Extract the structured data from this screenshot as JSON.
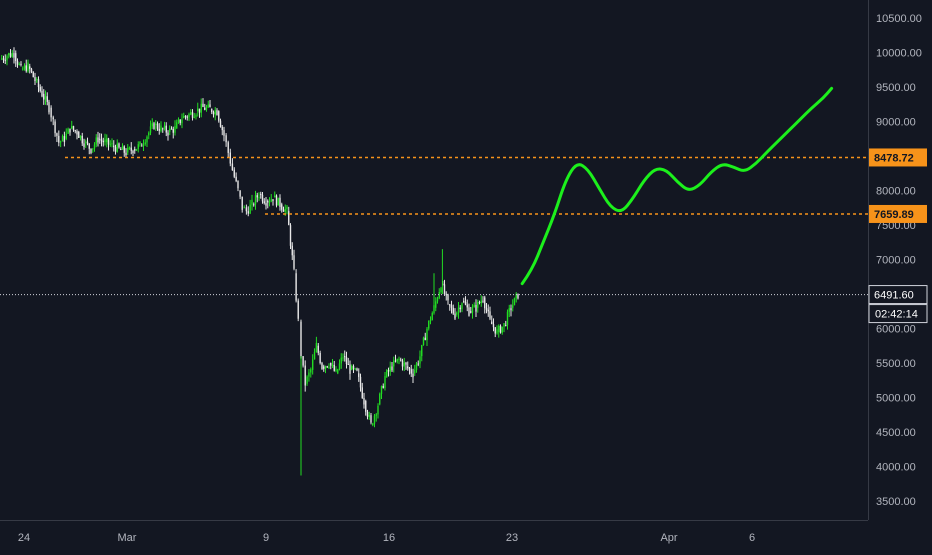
{
  "colors": {
    "background": "#131722",
    "up": "#22dd22",
    "down": "#e8e8e8",
    "level_line": "#f7931a",
    "level_label_bg": "#f7931a",
    "projection": "#1cf01c",
    "axis_text": "#b2b5be",
    "axis_line": "#363a45"
  },
  "chart_data": {
    "type": "candlestick",
    "ylim": [
      3250,
      10750
    ],
    "y_ticks": [
      "3500.00",
      "4000.00",
      "4500.00",
      "5000.00",
      "5500.00",
      "6000.00",
      "6500.00",
      "7000.00",
      "7500.00",
      "8000.00",
      "8500.00",
      "9000.00",
      "9500.00",
      "10000.00",
      "10500.00"
    ],
    "x_ticks": [
      "24",
      "Mar",
      "9",
      "16",
      "23",
      "Apr",
      "6"
    ],
    "levels": [
      {
        "value": 8478.72,
        "label": "8478.72"
      },
      {
        "value": 7659.89,
        "label": "7659.89"
      }
    ],
    "current_price": {
      "value": 6491.6,
      "label": "6491.60"
    },
    "countdown": "02:42:14",
    "segments": [
      {
        "points": [
          [
            0,
            9900
          ],
          [
            5,
            9960
          ],
          [
            10,
            9990
          ],
          [
            15,
            9750
          ],
          [
            20,
            9800
          ],
          [
            25,
            9600
          ],
          [
            30,
            9400
          ],
          [
            35,
            9200
          ],
          [
            38,
            9000
          ],
          [
            42,
            8700
          ],
          [
            46,
            8750
          ],
          [
            50,
            8900
          ],
          [
            55,
            8850
          ],
          [
            60,
            8700
          ],
          [
            65,
            8600
          ],
          [
            70,
            8750
          ],
          [
            75,
            8700
          ],
          [
            80,
            8650
          ],
          [
            85,
            8600
          ],
          [
            90,
            8550
          ],
          [
            95,
            8600
          ],
          [
            100,
            8650
          ],
          [
            105,
            8800
          ],
          [
            110,
            8950
          ],
          [
            115,
            8900
          ],
          [
            120,
            8850
          ],
          [
            125,
            8900
          ],
          [
            130,
            9050
          ],
          [
            135,
            9100
          ],
          [
            140,
            9150
          ],
          [
            145,
            9200
          ],
          [
            150,
            9180
          ],
          [
            155,
            9150
          ],
          [
            160,
            8800
          ],
          [
            163,
            8550
          ],
          [
            166,
            8300
          ],
          [
            170,
            8000
          ],
          [
            173,
            7750
          ],
          [
            176,
            7700
          ],
          [
            180,
            7800
          ],
          [
            185,
            7950
          ],
          [
            190,
            7850
          ],
          [
            195,
            7900
          ],
          [
            200,
            7800
          ],
          [
            205,
            7700
          ],
          [
            210,
            6800
          ],
          [
            213,
            6100
          ],
          [
            215,
            5600
          ],
          [
            218,
            5200
          ],
          [
            222,
            5400
          ],
          [
            226,
            5750
          ],
          [
            230,
            5450
          ],
          [
            235,
            5500
          ],
          [
            240,
            5350
          ],
          [
            245,
            5600
          ],
          [
            250,
            5400
          ],
          [
            255,
            5350
          ],
          [
            260,
            4950
          ],
          [
            265,
            4600
          ],
          [
            270,
            4900
          ],
          [
            275,
            5300
          ],
          [
            280,
            5450
          ],
          [
            285,
            5550
          ],
          [
            290,
            5450
          ],
          [
            295,
            5350
          ],
          [
            300,
            5600
          ],
          [
            305,
            6000
          ],
          [
            310,
            6300
          ],
          [
            315,
            6650
          ],
          [
            320,
            6350
          ],
          [
            325,
            6200
          ],
          [
            330,
            6400
          ],
          [
            335,
            6250
          ],
          [
            340,
            6300
          ],
          [
            345,
            6450
          ],
          [
            350,
            6100
          ],
          [
            355,
            5950
          ],
          [
            360,
            6050
          ],
          [
            365,
            6300
          ],
          [
            370,
            6491.6
          ]
        ],
        "mark": "candles"
      },
      {
        "points": [
          [
            373,
            6650
          ],
          [
            380,
            6850
          ],
          [
            388,
            7250
          ],
          [
            396,
            7650
          ],
          [
            404,
            8150
          ],
          [
            412,
            8410
          ],
          [
            420,
            8310
          ],
          [
            428,
            8030
          ],
          [
            436,
            7760
          ],
          [
            444,
            7680
          ],
          [
            452,
            7880
          ],
          [
            460,
            8150
          ],
          [
            468,
            8320
          ],
          [
            476,
            8300
          ],
          [
            484,
            8120
          ],
          [
            492,
            7990
          ],
          [
            500,
            8080
          ],
          [
            508,
            8270
          ],
          [
            516,
            8390
          ],
          [
            524,
            8340
          ],
          [
            532,
            8270
          ],
          [
            540,
            8390
          ],
          [
            548,
            8560
          ],
          [
            556,
            8720
          ],
          [
            564,
            8880
          ],
          [
            572,
            9040
          ],
          [
            580,
            9200
          ],
          [
            588,
            9340
          ],
          [
            594,
            9480
          ]
        ],
        "mark": "projection"
      }
    ]
  }
}
